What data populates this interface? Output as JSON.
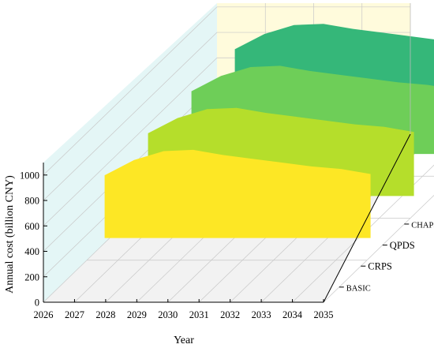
{
  "chart_data": {
    "type": "area",
    "x": [
      2026,
      2027,
      2028,
      2029,
      2030,
      2031,
      2032,
      2033,
      2034,
      2035
    ],
    "x_tick_labels": [
      "2026",
      "2027",
      "2028",
      "2029",
      "2030",
      "2031",
      "2032",
      "2033",
      "2034",
      "2035"
    ],
    "y_tick_labels": [
      "0",
      "200",
      "400",
      "600",
      "800",
      "1000"
    ],
    "xlabel": "Year",
    "ylabel": "Annual cost (billion CNY)",
    "ylim": [
      0,
      1100
    ],
    "series": [
      {
        "name": "BASIC",
        "color": "#fde725",
        "values": [
          760,
          880,
          950,
          960,
          920,
          890,
          860,
          830,
          810,
          770
        ]
      },
      {
        "name": "CRPS",
        "color": "#b5de2b",
        "values": [
          760,
          880,
          950,
          960,
          920,
          890,
          860,
          830,
          810,
          770
        ]
      },
      {
        "name": "QPDS",
        "color": "#6ece58",
        "values": [
          760,
          880,
          950,
          960,
          920,
          890,
          860,
          830,
          810,
          770
        ]
      },
      {
        "name": "CHAPS",
        "color": "#35b779",
        "values": [
          760,
          880,
          950,
          960,
          920,
          890,
          860,
          830,
          810,
          770
        ]
      }
    ],
    "grid": true,
    "panel_colors": {
      "back_wall": "#fffbdc",
      "side_wall": "#e4f6f6",
      "floor": "#f2f2f2",
      "grid_line": "#c8c8c8"
    }
  }
}
